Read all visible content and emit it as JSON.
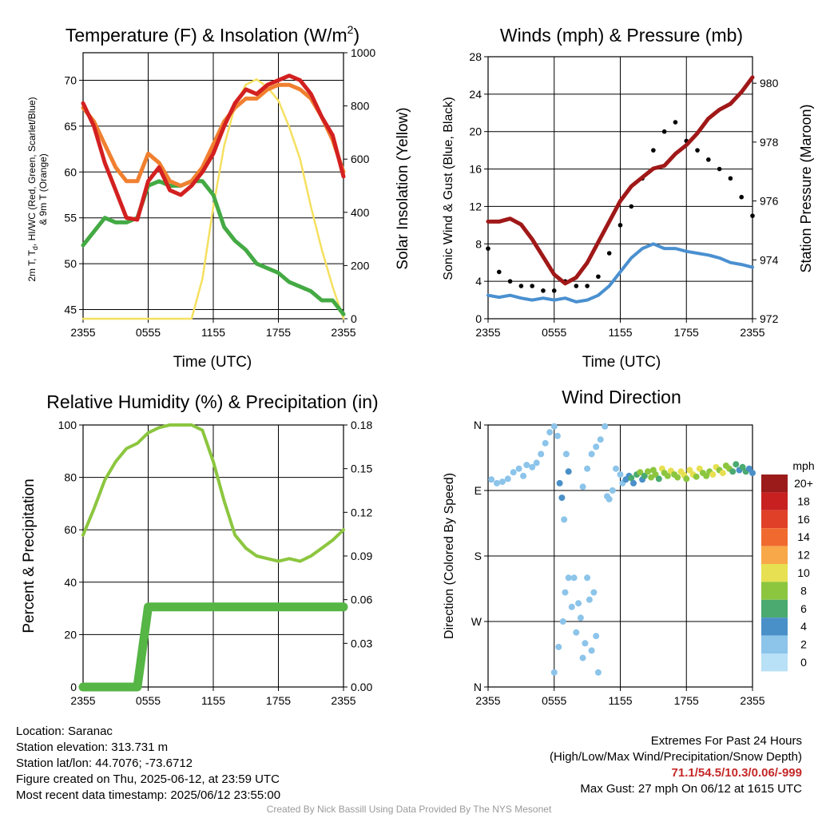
{
  "charts": {
    "temperature": {
      "title_main": "Temperature (F) & Insolation (W/m",
      "title_sup": "2",
      "title_end": ")",
      "ylabel_left_line1": "2m T, T",
      "ylabel_left_sub": "d",
      "ylabel_left_line1_rest": ", HI/WC (Red, Green, Scarlet/Blue)",
      "ylabel_left_line2": "& 9m T (Orange)",
      "ylabel_right": "Solar Insolation (Yellow)",
      "xlabel": "Time (UTC)"
    },
    "winds": {
      "title": "Winds (mph) & Pressure (mb)",
      "ylabel_left": "Sonic Wind & Gust (Blue, Black)",
      "ylabel_right": "Station Pressure (Maroon)",
      "xlabel": "Time (UTC)"
    },
    "humidity": {
      "title": "Relative Humidity (%) & Precipitation (in)",
      "ylabel_left": "Percent & Precipitation"
    },
    "direction": {
      "title": "Wind Direction",
      "ylabel_left": "Direction (Colored By Speed)",
      "legend_unit": "mph",
      "legend_labels": [
        "20+",
        "18",
        "16",
        "14",
        "12",
        "10",
        "8",
        "6",
        "4",
        "2",
        "0"
      ]
    }
  },
  "chart_data": [
    {
      "type": "line",
      "title": "Temperature (F) & Insolation (W/m2)",
      "xlabel": "Time (UTC)",
      "x_ticks": [
        "2355",
        "0555",
        "1155",
        "1755",
        "2355"
      ],
      "x": [
        0,
        1,
        2,
        3,
        4,
        5,
        6,
        7,
        8,
        9,
        10,
        11,
        12,
        13,
        14,
        15,
        16,
        17,
        18,
        19,
        20,
        21,
        22,
        23,
        24
      ],
      "ylim": [
        44,
        73
      ],
      "y_ticks": [
        45,
        50,
        55,
        60,
        65,
        70
      ],
      "y2lim": [
        0,
        1000
      ],
      "y2_ticks": [
        0,
        200,
        400,
        600,
        800,
        1000
      ],
      "series": [
        {
          "name": "2m T",
          "color": "#d32020",
          "values": [
            67.5,
            65,
            61,
            58,
            55,
            54.8,
            59,
            60.5,
            58,
            57.5,
            58.5,
            60,
            62,
            65,
            67.5,
            69,
            68.5,
            69.5,
            70,
            70.5,
            70,
            68.5,
            66,
            64,
            59.5
          ]
        },
        {
          "name": "9m T",
          "color": "#f08030",
          "values": [
            67,
            65.5,
            63,
            60.5,
            59,
            59,
            62,
            61,
            59,
            58.5,
            59,
            60.5,
            63,
            65.5,
            67,
            68,
            68,
            69,
            69.5,
            69.5,
            69,
            68,
            66,
            63.5,
            60
          ]
        },
        {
          "name": "Td",
          "color": "#44aa44",
          "values": [
            52,
            53.5,
            55,
            54.5,
            54.5,
            55,
            58.5,
            59,
            58.5,
            58.5,
            59,
            59,
            57.5,
            54,
            52.5,
            51.5,
            50,
            49.5,
            49,
            48,
            47.5,
            47,
            46,
            46,
            44.5
          ]
        },
        {
          "name": "Solar Insolation",
          "axis": "right",
          "color": "#f5e060",
          "values": [
            0,
            0,
            0,
            0,
            0,
            0,
            0,
            0,
            0,
            0,
            0,
            150,
            420,
            650,
            800,
            880,
            900,
            870,
            820,
            720,
            600,
            420,
            260,
            120,
            0
          ]
        }
      ]
    },
    {
      "type": "line",
      "title": "Winds (mph) & Pressure (mb)",
      "xlabel": "Time (UTC)",
      "x_ticks": [
        "2355",
        "0555",
        "1155",
        "1755",
        "2355"
      ],
      "x": [
        0,
        1,
        2,
        3,
        4,
        5,
        6,
        7,
        8,
        9,
        10,
        11,
        12,
        13,
        14,
        15,
        16,
        17,
        18,
        19,
        20,
        21,
        22,
        23,
        24
      ],
      "ylim": [
        0,
        28
      ],
      "y_ticks": [
        0,
        4,
        8,
        12,
        16,
        20,
        24,
        28
      ],
      "y2lim": [
        972,
        980.9
      ],
      "y2_ticks": [
        972,
        974,
        976,
        978,
        980
      ],
      "series": [
        {
          "name": "Sonic Wind",
          "color": "#4a90d0",
          "values": [
            2.5,
            2.3,
            2.5,
            2.2,
            2.0,
            2.2,
            2.0,
            2.2,
            1.8,
            2.0,
            2.5,
            3.5,
            5.0,
            6.5,
            7.5,
            8.0,
            7.5,
            7.5,
            7.2,
            7.0,
            6.8,
            6.5,
            6.0,
            5.8,
            5.5
          ]
        },
        {
          "name": "Gust",
          "color": "#000000",
          "values": [
            7.5,
            5,
            4,
            3.5,
            3.5,
            3,
            3,
            4,
            3.5,
            3.5,
            4.5,
            7,
            10,
            12,
            15,
            18,
            20,
            21,
            19,
            18,
            17,
            16,
            15,
            13,
            11
          ]
        },
        {
          "name": "Station Pressure",
          "axis": "right",
          "color": "#a01818",
          "values": [
            975.3,
            975.3,
            975.4,
            975.2,
            974.7,
            974.1,
            973.5,
            973.2,
            973.4,
            973.9,
            974.6,
            975.3,
            976.0,
            976.5,
            976.8,
            977.1,
            977.2,
            977.6,
            977.9,
            978.3,
            978.8,
            979.1,
            979.3,
            979.7,
            980.2
          ]
        }
      ]
    },
    {
      "type": "line",
      "title": "Relative Humidity (%) & Precipitation (in)",
      "x_ticks": [
        "2355",
        "0555",
        "1155",
        "1755",
        "2355"
      ],
      "x": [
        0,
        1,
        2,
        3,
        4,
        5,
        6,
        7,
        8,
        9,
        10,
        11,
        12,
        13,
        14,
        15,
        16,
        17,
        18,
        19,
        20,
        21,
        22,
        23,
        24
      ],
      "ylim": [
        0,
        100
      ],
      "y_ticks": [
        0,
        20,
        40,
        60,
        80,
        100
      ],
      "y2lim": [
        0,
        0.18
      ],
      "y2_ticks": [
        "0.00",
        "0.03",
        "0.06",
        "0.09",
        "0.12",
        "0.15",
        "0.18"
      ],
      "series": [
        {
          "name": "Relative Humidity",
          "color": "#8cc63f",
          "values": [
            58,
            68,
            79,
            86,
            91,
            93,
            97,
            99,
            100,
            100,
            100,
            98,
            86,
            71,
            58,
            53,
            50,
            49,
            48,
            49,
            48,
            50,
            53,
            56,
            60
          ]
        },
        {
          "name": "Precipitation",
          "axis": "right",
          "color": "#55b545",
          "values": [
            0,
            0,
            0,
            0,
            0,
            0,
            0.055,
            0.055,
            0.055,
            0.055,
            0.055,
            0.055,
            0.055,
            0.055,
            0.055,
            0.055,
            0.055,
            0.055,
            0.055,
            0.055,
            0.055,
            0.055,
            0.055,
            0.055,
            0.055
          ]
        }
      ]
    },
    {
      "type": "scatter",
      "title": "Wind Direction",
      "x_ticks": [
        "2355",
        "0555",
        "1155",
        "1755",
        "2355"
      ],
      "y_ticks": [
        "N",
        "W",
        "S",
        "E",
        "N"
      ],
      "ylim": [
        0,
        360
      ],
      "legend_title": "mph",
      "legend_placement": "right",
      "points": [
        [
          0.3,
          285,
          2
        ],
        [
          0.8,
          280,
          2
        ],
        [
          1.3,
          282,
          1
        ],
        [
          1.8,
          286,
          2
        ],
        [
          2.3,
          295,
          2
        ],
        [
          2.8,
          300,
          1
        ],
        [
          3.2,
          290,
          2
        ],
        [
          3.5,
          305,
          2
        ],
        [
          4.0,
          302,
          2
        ],
        [
          4.4,
          308,
          2
        ],
        [
          4.8,
          320,
          1
        ],
        [
          5.2,
          335,
          1
        ],
        [
          5.6,
          350,
          1
        ],
        [
          6.0,
          358,
          1
        ],
        [
          6.3,
          345,
          1
        ],
        [
          6.5,
          280,
          3
        ],
        [
          6.7,
          260,
          3
        ],
        [
          6.9,
          230,
          2
        ],
        [
          7.1,
          320,
          2
        ],
        [
          7.3,
          296,
          3
        ],
        [
          6.0,
          20,
          1
        ],
        [
          6.4,
          55,
          1
        ],
        [
          6.8,
          90,
          1
        ],
        [
          7.0,
          130,
          2
        ],
        [
          7.3,
          150,
          2
        ],
        [
          7.6,
          110,
          2
        ],
        [
          7.8,
          150,
          1
        ],
        [
          8.0,
          75,
          2
        ],
        [
          8.2,
          115,
          2
        ],
        [
          8.4,
          95,
          1
        ],
        [
          8.6,
          40,
          1
        ],
        [
          8.8,
          60,
          1
        ],
        [
          9.0,
          150,
          2
        ],
        [
          9.2,
          120,
          2
        ],
        [
          9.4,
          50,
          1
        ],
        [
          9.6,
          130,
          1
        ],
        [
          9.8,
          70,
          1
        ],
        [
          10.0,
          20,
          1
        ],
        [
          8.6,
          275,
          1
        ],
        [
          9.0,
          300,
          1
        ],
        [
          9.4,
          320,
          1
        ],
        [
          9.8,
          330,
          1
        ],
        [
          10.2,
          340,
          1
        ],
        [
          10.6,
          358,
          1
        ],
        [
          10.8,
          262,
          1
        ],
        [
          11.0,
          258,
          2
        ],
        [
          11.3,
          270,
          1
        ],
        [
          11.6,
          300,
          1
        ],
        [
          12.0,
          292,
          2
        ],
        [
          12.2,
          280,
          1
        ],
        [
          12.5,
          285,
          3
        ],
        [
          12.8,
          290,
          4
        ],
        [
          13.0,
          287,
          5
        ],
        [
          13.2,
          280,
          3
        ],
        [
          13.5,
          292,
          6
        ],
        [
          13.8,
          295,
          7
        ],
        [
          14.0,
          285,
          4
        ],
        [
          14.2,
          290,
          6
        ],
        [
          14.5,
          296,
          7
        ],
        [
          14.8,
          288,
          8
        ],
        [
          15.0,
          298,
          7
        ],
        [
          15.2,
          292,
          8
        ],
        [
          15.5,
          286,
          6
        ],
        [
          15.8,
          300,
          9
        ],
        [
          16.0,
          294,
          7
        ],
        [
          16.3,
          290,
          8
        ],
        [
          16.6,
          297,
          9
        ],
        [
          16.9,
          292,
          8
        ],
        [
          17.2,
          288,
          7
        ],
        [
          17.5,
          296,
          10
        ],
        [
          17.8,
          291,
          9
        ],
        [
          18.0,
          286,
          8
        ],
        [
          18.3,
          298,
          9
        ],
        [
          18.6,
          292,
          10
        ],
        [
          18.9,
          289,
          7
        ],
        [
          19.2,
          300,
          9
        ],
        [
          19.5,
          294,
          8
        ],
        [
          19.8,
          290,
          7
        ],
        [
          20.1,
          296,
          8
        ],
        [
          20.4,
          292,
          9
        ],
        [
          20.7,
          302,
          10
        ],
        [
          21.0,
          298,
          8
        ],
        [
          21.3,
          294,
          9
        ],
        [
          21.6,
          304,
          8
        ],
        [
          21.9,
          300,
          7
        ],
        [
          22.2,
          296,
          6
        ],
        [
          22.5,
          306,
          5
        ],
        [
          22.8,
          298,
          4
        ],
        [
          23.1,
          302,
          6
        ],
        [
          23.4,
          296,
          5
        ],
        [
          23.7,
          300,
          4
        ],
        [
          24.0,
          294,
          3
        ]
      ]
    }
  ],
  "info": {
    "location": "Location: Saranac",
    "elevation": "Station elevation: 313.731 m",
    "latlon": "Station lat/lon: 44.7076; -73.6712",
    "created": "Figure created on Thu, 2025-06-12, at 23:59 UTC",
    "recent": "Most recent data timestamp: 2025/06/12 23:55:00"
  },
  "extremes": {
    "title": "Extremes For Past 24 Hours",
    "subtitle": "(High/Low/Max Wind/Precipitation/Snow Depth)",
    "values": "71.1/54.5/10.3/0.06/-999",
    "gust": "Max Gust: 27 mph On 06/12 at 1615 UTC"
  },
  "credit": "Created By Nick Bassill Using Data Provided By The NYS Mesonet",
  "colors": {
    "speed_scale": [
      "#b8e0f6",
      "#8cc4ea",
      "#4a90c8",
      "#4aaa70",
      "#8cc63f",
      "#e6e052",
      "#f8a848",
      "#f06a30",
      "#e04028",
      "#c82020",
      "#9b1b1b"
    ]
  }
}
